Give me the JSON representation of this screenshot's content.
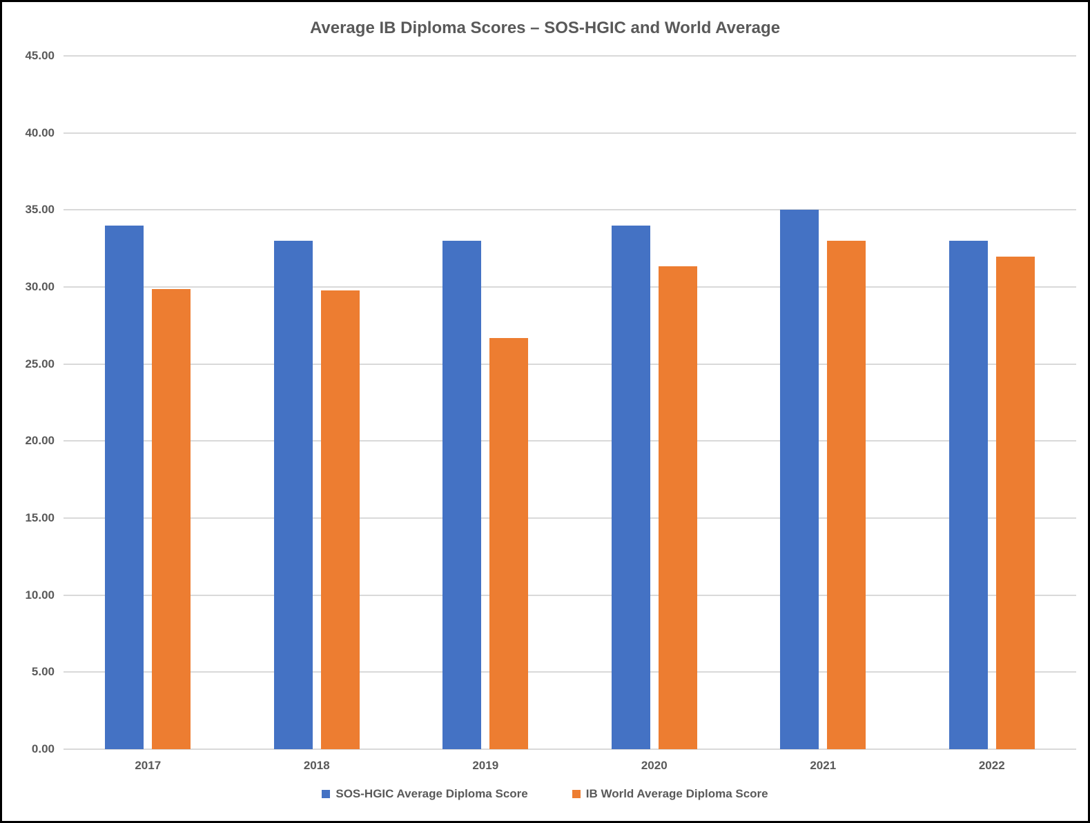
{
  "title": "Average IB Diploma Scores – SOS-HGIC and World Average",
  "chart_data": {
    "type": "bar",
    "categories": [
      "2017",
      "2018",
      "2019",
      "2020",
      "2021",
      "2022"
    ],
    "series": [
      {
        "name": "SOS-HGIC Average Diploma Score",
        "color": "#4472C4",
        "values": [
          34.0,
          33.0,
          33.0,
          34.0,
          35.0,
          33.0
        ]
      },
      {
        "name": "IB World Average Diploma Score",
        "color": "#ED7D31",
        "values": [
          29.87,
          29.78,
          26.67,
          31.34,
          33.0,
          31.98
        ]
      }
    ],
    "title": "Average IB Diploma Scores – SOS-HGIC and World Average",
    "xlabel": "",
    "ylabel": "",
    "ylim": [
      0,
      45
    ],
    "ytick_step": 5,
    "ytick_labels": [
      "0.00",
      "5.00",
      "10.00",
      "15.00",
      "20.00",
      "25.00",
      "30.00",
      "35.00",
      "40.00",
      "45.00"
    ],
    "grid": true,
    "legend_position": "bottom",
    "colors": {
      "gridline": "#D9D9D9",
      "axis_line": "#D9D9D9",
      "text": "#595959",
      "background": "#FFFFFF",
      "page_border": "#000000"
    }
  }
}
